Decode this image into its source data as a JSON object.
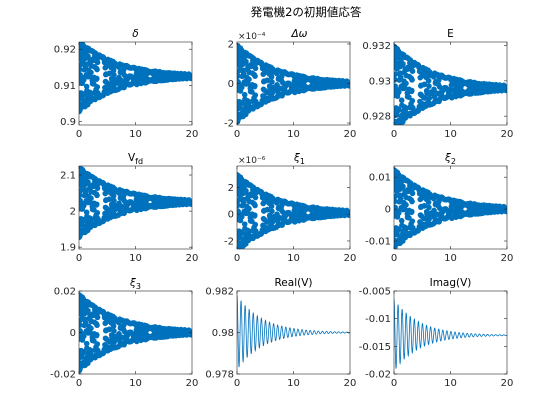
{
  "figure_title": "発電機2の初期値応答",
  "colors": {
    "series": "#0072BD",
    "axis": "#262626",
    "background": "#ffffff"
  },
  "chart_data": [
    {
      "id": "delta",
      "type": "scatter",
      "title": "δ",
      "title_style": "italic",
      "xlim": [
        0,
        20
      ],
      "xticks": [
        "0",
        "10",
        "20"
      ],
      "ylim": [
        0.899,
        0.922
      ],
      "yticks": [
        {
          "v": 0.9,
          "t": "0.9"
        },
        {
          "v": 0.91,
          "t": "0.91"
        },
        {
          "v": 0.92,
          "t": "0.92"
        }
      ],
      "series": [
        {
          "equilibrium": 0.9125,
          "amplitude": 0.0098,
          "decay_time": 7,
          "period": 0.12,
          "marker": "circle"
        }
      ]
    },
    {
      "id": "domega",
      "type": "scatter",
      "title": "Δω",
      "title_style": "italic",
      "exponent": "×10⁻⁴",
      "xlim": [
        0,
        20
      ],
      "xticks": [
        "0",
        "10",
        "20"
      ],
      "ylim": [
        -2.1,
        2.1
      ],
      "yticks": [
        {
          "v": -2,
          "t": "-2"
        },
        {
          "v": 0,
          "t": "0"
        },
        {
          "v": 2,
          "t": "2"
        }
      ],
      "series": [
        {
          "equilibrium": 0,
          "amplitude": 1.95,
          "decay_time": 7,
          "period": 0.12,
          "marker": "circle"
        }
      ]
    },
    {
      "id": "E",
      "type": "scatter",
      "title": "E",
      "title_style": "normal",
      "xlim": [
        0,
        20
      ],
      "xticks": [
        "0",
        "10",
        "20"
      ],
      "ylim": [
        0.9275,
        0.9322
      ],
      "yticks": [
        {
          "v": 0.928,
          "t": "0.928"
        },
        {
          "v": 0.93,
          "t": "0.93"
        },
        {
          "v": 0.932,
          "t": "0.932"
        }
      ],
      "series": [
        {
          "equilibrium": 0.9296,
          "amplitude": 0.0024,
          "decay_time": 7,
          "period": 0.12,
          "marker": "circle"
        }
      ]
    },
    {
      "id": "vfd",
      "type": "scatter",
      "title": "V",
      "title_sub": "fd",
      "title_style": "normal",
      "xlim": [
        0,
        20
      ],
      "xticks": [
        "0",
        "10",
        "20"
      ],
      "ylim": [
        1.895,
        2.125
      ],
      "yticks": [
        {
          "v": 1.9,
          "t": "1.9"
        },
        {
          "v": 2,
          "t": "2"
        },
        {
          "v": 2.1,
          "t": "2.1"
        }
      ],
      "series": [
        {
          "equilibrium": 2.025,
          "amplitude": 0.098,
          "decay_time": 7,
          "period": 0.12,
          "marker": "circle"
        }
      ]
    },
    {
      "id": "xi1",
      "type": "scatter",
      "title": "ξ",
      "title_sub": "1",
      "title_style": "italic",
      "exponent": "×10⁻⁶",
      "xlim": [
        0,
        20
      ],
      "xticks": [
        "0",
        "10",
        "20"
      ],
      "ylim": [
        -2.6,
        3.6
      ],
      "yticks": [
        {
          "v": -2,
          "t": "-2"
        },
        {
          "v": 0,
          "t": "0"
        },
        {
          "v": 2,
          "t": "2"
        }
      ],
      "series": [
        {
          "equilibrium": 0.1,
          "amplitude": 2.9,
          "decay_time": 7,
          "period": 0.12,
          "marker": "circle"
        }
      ]
    },
    {
      "id": "xi2",
      "type": "scatter",
      "title": "ξ",
      "title_sub": "2",
      "title_style": "italic",
      "xlim": [
        0,
        20
      ],
      "xticks": [
        "0",
        "10",
        "20"
      ],
      "ylim": [
        -0.0125,
        0.0135
      ],
      "yticks": [
        {
          "v": -0.01,
          "t": "-0.01"
        },
        {
          "v": 0,
          "t": "0"
        },
        {
          "v": 0.01,
          "t": "0.01"
        }
      ],
      "series": [
        {
          "equilibrium": 0,
          "amplitude": 0.0125,
          "decay_time": 7,
          "period": 0.12,
          "marker": "circle"
        }
      ]
    },
    {
      "id": "xi3",
      "type": "scatter",
      "title": "ξ",
      "title_sub": "3",
      "title_style": "italic",
      "xlim": [
        0,
        20
      ],
      "xticks": [
        "0",
        "10",
        "20"
      ],
      "ylim": [
        -0.02,
        0.02
      ],
      "yticks": [
        {
          "v": -0.02,
          "t": "-0.02"
        },
        {
          "v": 0,
          "t": "0"
        },
        {
          "v": 0.02,
          "t": "0.02"
        }
      ],
      "series": [
        {
          "equilibrium": 0,
          "amplitude": 0.0185,
          "decay_time": 7,
          "period": 0.12,
          "marker": "circle"
        }
      ]
    },
    {
      "id": "realv",
      "type": "line",
      "title": "Real(V)",
      "title_style": "normal",
      "xlim": [
        0,
        20
      ],
      "xticks": [
        "0",
        "10",
        "20"
      ],
      "ylim": [
        0.978,
        0.982
      ],
      "yticks": [
        {
          "v": 0.978,
          "t": "0.978"
        },
        {
          "v": 0.98,
          "t": "0.98"
        },
        {
          "v": 0.982,
          "t": "0.982"
        }
      ],
      "series": [
        {
          "equilibrium": 0.98,
          "amplitude": 0.0018,
          "decay_time": 4.5,
          "period": 0.72
        }
      ]
    },
    {
      "id": "imagv",
      "type": "line",
      "title": "Imag(V)",
      "title_style": "normal",
      "xlim": [
        0,
        20
      ],
      "xticks": [
        "0",
        "10",
        "20"
      ],
      "ylim": [
        -0.02,
        -0.005
      ],
      "yticks": [
        {
          "v": -0.02,
          "t": "-0.02"
        },
        {
          "v": -0.015,
          "t": "-0.015"
        },
        {
          "v": -0.01,
          "t": "-0.01"
        },
        {
          "v": -0.005,
          "t": "-0.005"
        }
      ],
      "series": [
        {
          "equilibrium": -0.013,
          "amplitude": 0.0065,
          "decay_time": 4.5,
          "period": 0.72
        }
      ]
    }
  ]
}
